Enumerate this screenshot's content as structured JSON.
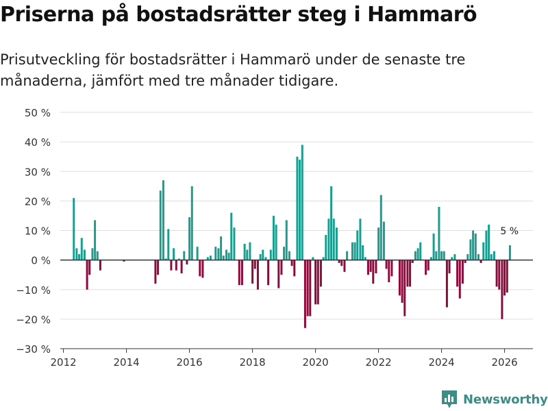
{
  "header": {
    "title": "Priserna på bostadsrätter steg i Hammarö",
    "subtitle": "Prisutveckling för bostadsrätter i Hammarö under de senaste tre månaderna, jämfört med tre månader tidigare."
  },
  "brand": {
    "name": "Newsworthy",
    "color": "#3d8c86"
  },
  "colors": {
    "positive": "#1a9c8f",
    "negative": "#8d0a3c",
    "grid": "#dddddd",
    "zero": "#333333"
  },
  "chart_data": {
    "type": "bar",
    "title": "Priserna på bostadsrätter steg i Hammarö",
    "xlabel": "",
    "ylabel": "",
    "ylim": [
      -30,
      50
    ],
    "xlim": [
      2011.9,
      2026.9
    ],
    "yticks": [
      -30,
      -20,
      -10,
      0,
      10,
      20,
      30,
      40,
      50
    ],
    "ytick_labels": [
      "−30 %",
      "−20 %",
      "−10 %",
      "0 %",
      "10 %",
      "20 %",
      "30 %",
      "40 %",
      "50 %"
    ],
    "xticks": [
      2012,
      2014,
      2016,
      2018,
      2020,
      2022,
      2024,
      2026
    ],
    "xtick_labels": [
      "2012",
      "2014",
      "2016",
      "2018",
      "2020",
      "2022",
      "2024",
      "2026"
    ],
    "grid": true,
    "unit": "%",
    "annotation": {
      "text": "5 %",
      "x": 2026.17
    },
    "x": [
      2012.33,
      2012.42,
      2012.5,
      2012.58,
      2012.67,
      2012.75,
      2012.83,
      2012.92,
      2013.0,
      2013.08,
      2013.17,
      2013.25,
      2013.92,
      2014.92,
      2015.0,
      2015.08,
      2015.17,
      2015.25,
      2015.33,
      2015.42,
      2015.5,
      2015.58,
      2015.67,
      2015.75,
      2015.83,
      2015.92,
      2016.0,
      2016.08,
      2016.17,
      2016.25,
      2016.33,
      2016.42,
      2016.5,
      2016.58,
      2016.67,
      2016.75,
      2016.83,
      2016.92,
      2017.0,
      2017.08,
      2017.17,
      2017.25,
      2017.33,
      2017.42,
      2017.5,
      2017.58,
      2017.67,
      2017.75,
      2017.83,
      2017.92,
      2018.0,
      2018.08,
      2018.17,
      2018.25,
      2018.33,
      2018.42,
      2018.5,
      2018.58,
      2018.67,
      2018.75,
      2018.83,
      2018.92,
      2019.0,
      2019.08,
      2019.17,
      2019.25,
      2019.33,
      2019.42,
      2019.5,
      2019.58,
      2019.67,
      2019.75,
      2019.83,
      2019.92,
      2020.0,
      2020.08,
      2020.17,
      2020.25,
      2020.33,
      2020.42,
      2020.5,
      2020.58,
      2020.67,
      2020.75,
      2020.83,
      2020.92,
      2021.0,
      2021.08,
      2021.17,
      2021.25,
      2021.33,
      2021.42,
      2021.5,
      2021.58,
      2021.67,
      2021.75,
      2021.83,
      2021.92,
      2022.0,
      2022.08,
      2022.17,
      2022.25,
      2022.33,
      2022.42,
      2022.5,
      2022.58,
      2022.67,
      2022.75,
      2022.83,
      2022.92,
      2023.0,
      2023.08,
      2023.17,
      2023.25,
      2023.33,
      2023.42,
      2023.5,
      2023.58,
      2023.67,
      2023.75,
      2023.83,
      2023.92,
      2024.0,
      2024.08,
      2024.17,
      2024.25,
      2024.33,
      2024.42,
      2024.5,
      2024.58,
      2024.67,
      2024.75,
      2024.83,
      2024.92,
      2025.0,
      2025.08,
      2025.17,
      2025.25,
      2025.33,
      2025.42,
      2025.5,
      2025.58,
      2025.67,
      2025.75,
      2025.83,
      2025.92,
      2026.0,
      2026.08,
      2026.17
    ],
    "values": [
      21,
      4,
      2,
      7.5,
      3.5,
      -10,
      -5,
      4,
      13.5,
      3,
      -3.5,
      0,
      -0.5,
      -8,
      -5,
      23.5,
      27,
      0.5,
      10.5,
      -3.5,
      4,
      -3.5,
      0.5,
      -4.5,
      3,
      -1.5,
      14.5,
      25,
      0,
      4.5,
      -5.5,
      -6,
      0,
      1,
      1.5,
      0,
      4.5,
      4,
      8,
      1.5,
      3.5,
      2.5,
      16,
      11,
      0,
      -8.5,
      -8.5,
      5.5,
      3.5,
      6,
      -8,
      -3,
      -10,
      2,
      3.5,
      1,
      -8.5,
      3.5,
      15,
      12,
      -9.5,
      -5,
      4.5,
      13.5,
      3,
      -2,
      -5.5,
      35,
      34,
      39,
      -23,
      -19,
      -19,
      1,
      -15,
      -15,
      -9,
      1,
      8.5,
      14,
      25,
      14,
      11,
      -1,
      -2,
      -4,
      3,
      0,
      6,
      6,
      10,
      14,
      5,
      1,
      -5,
      -4,
      -8,
      -4.5,
      11,
      22,
      13,
      -3,
      -7.5,
      -5.5,
      0,
      0,
      -12,
      -14.5,
      -19,
      -9,
      -9,
      -1,
      3,
      4,
      6,
      0,
      -5,
      -3.5,
      1,
      9,
      3,
      18,
      3,
      3,
      -16,
      -4.5,
      1,
      2,
      -9,
      -13,
      -8,
      -1,
      2,
      7,
      10,
      9,
      2,
      -1,
      6,
      10,
      12,
      2,
      3,
      -9,
      -10,
      -20,
      -12,
      -11,
      5
    ]
  }
}
